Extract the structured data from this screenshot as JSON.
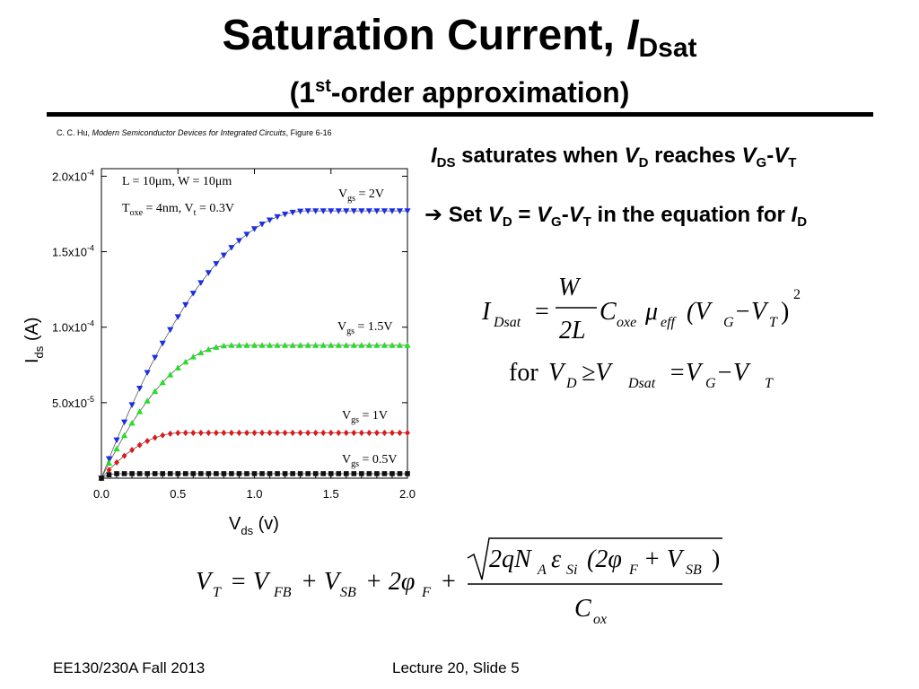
{
  "slide": {
    "title": "Saturation Current, ",
    "title_var": "I",
    "title_sub": "Dsat",
    "subtitle_pre": "(1",
    "subtitle_sup": "st",
    "subtitle_post": "-order approximation)",
    "citation_author": "C. C. Hu, ",
    "citation_book": "Modern Semiconductor Devices for Integrated Circuits",
    "citation_fig": ", Figure 6-16",
    "bullet1": {
      "a": "I",
      "a_sub": "DS",
      "b": " saturates when ",
      "c": "V",
      "c_sub": "D",
      "d": " reaches ",
      "e": "V",
      "e_sub": "G",
      "f": "-",
      "g": "V",
      "g_sub": "T"
    },
    "bullet2": {
      "arrow": "➔",
      "a": " Set ",
      "b": "V",
      "b_sub": "D",
      "c": " = ",
      "d": "V",
      "d_sub": "G",
      "e": "-",
      "f": "V",
      "f_sub": "T",
      "g": " in the equation for ",
      "h": "I",
      "h_sub": "D"
    },
    "footer_left": "EE130/230A  Fall 2013",
    "footer_right": "Lecture 20, Slide 5"
  },
  "equations": {
    "idsat_lhs": "I",
    "idsat_lhs_sub": "Dsat",
    "eq": "=",
    "num": "W",
    "den": "2L",
    "cox": "C",
    "cox_sub": "oxe",
    "mu": "μ",
    "mu_sub": "eff",
    "paren_open": "(V",
    "vg_sub": "G",
    "minus": "−V",
    "vt_sub": "T",
    "paren_close": ")",
    "sq": "2",
    "for": "for",
    "vd": "V",
    "vd_sub": "D",
    "ge": "≥V",
    "vdsat_sub": "Dsat",
    "eq2": "=V",
    "vg2_sub": "G",
    "minus2": "−V",
    "vt2_sub": "T",
    "vt_lhs": "V",
    "vt_lhs_sub": "T",
    "vt_eq": "= V",
    "vfb_sub": "FB",
    "plus1": "+ V",
    "vsb_sub": "SB",
    "plus2": "+ 2φ",
    "phif_sub": "F",
    "plus3": "+",
    "sqrt_body": "2qN",
    "na_sub": "A",
    "eps": "ε",
    "si_sub": "Si",
    "inner": "(2φ",
    "inner_f": "F",
    "inner_plus": "+ V",
    "inner_sb": "SB",
    "inner_close": ")",
    "cox_den": "C",
    "cox_den_sub": "ox"
  },
  "chart_data": {
    "type": "scatter",
    "xlabel": "V",
    "xlabel_sub": "ds",
    "xlabel_unit": " (v)",
    "ylabel": "I",
    "ylabel_sub": "ds",
    "ylabel_unit": " (A)",
    "xlim": [
      0,
      2.0
    ],
    "ylim": [
      0,
      0.000205
    ],
    "xticks": [
      "0.0",
      "0.5",
      "1.0",
      "1.5",
      "2.0"
    ],
    "xtick_values": [
      0,
      0.5,
      1.0,
      1.5,
      2.0
    ],
    "yticks": [
      {
        "value": 5e-05,
        "mant": "5.0x10",
        "exp": "-5"
      },
      {
        "value": 0.0001,
        "mant": "1.0x10",
        "exp": "-4"
      },
      {
        "value": 0.00015,
        "mant": "1.5x10",
        "exp": "-4"
      },
      {
        "value": 0.0002,
        "mant": "2.0x10",
        "exp": "-4"
      }
    ],
    "params_line1": "L = 10μm, W = 10μm",
    "params_line2_a": "T",
    "params_line2_sub": "oxe",
    "params_line2_b": " = 4nm, V",
    "params_line2_sub2": "t",
    "params_line2_c": " = 0.3V",
    "series": [
      {
        "name": "V",
        "name_sub": "gs",
        "name_val": " = 2V",
        "color": "#1a2ee6",
        "marker": "triangle-down",
        "vdsat": 1.35,
        "idsat": 0.000177
      },
      {
        "name": "V",
        "name_sub": "gs",
        "name_val": " = 1.5V",
        "color": "#22e022",
        "marker": "triangle-up",
        "vdsat": 0.85,
        "idsat": 8.8e-05
      },
      {
        "name": "V",
        "name_sub": "gs",
        "name_val": " = 1V",
        "color": "#e01818",
        "marker": "diamond",
        "vdsat": 0.52,
        "idsat": 3e-05
      },
      {
        "name": "V",
        "name_sub": "gs",
        "name_val": " = 0.5V",
        "color": "#111111",
        "marker": "square",
        "vdsat": 0.1,
        "idsat": 3e-06
      }
    ]
  }
}
